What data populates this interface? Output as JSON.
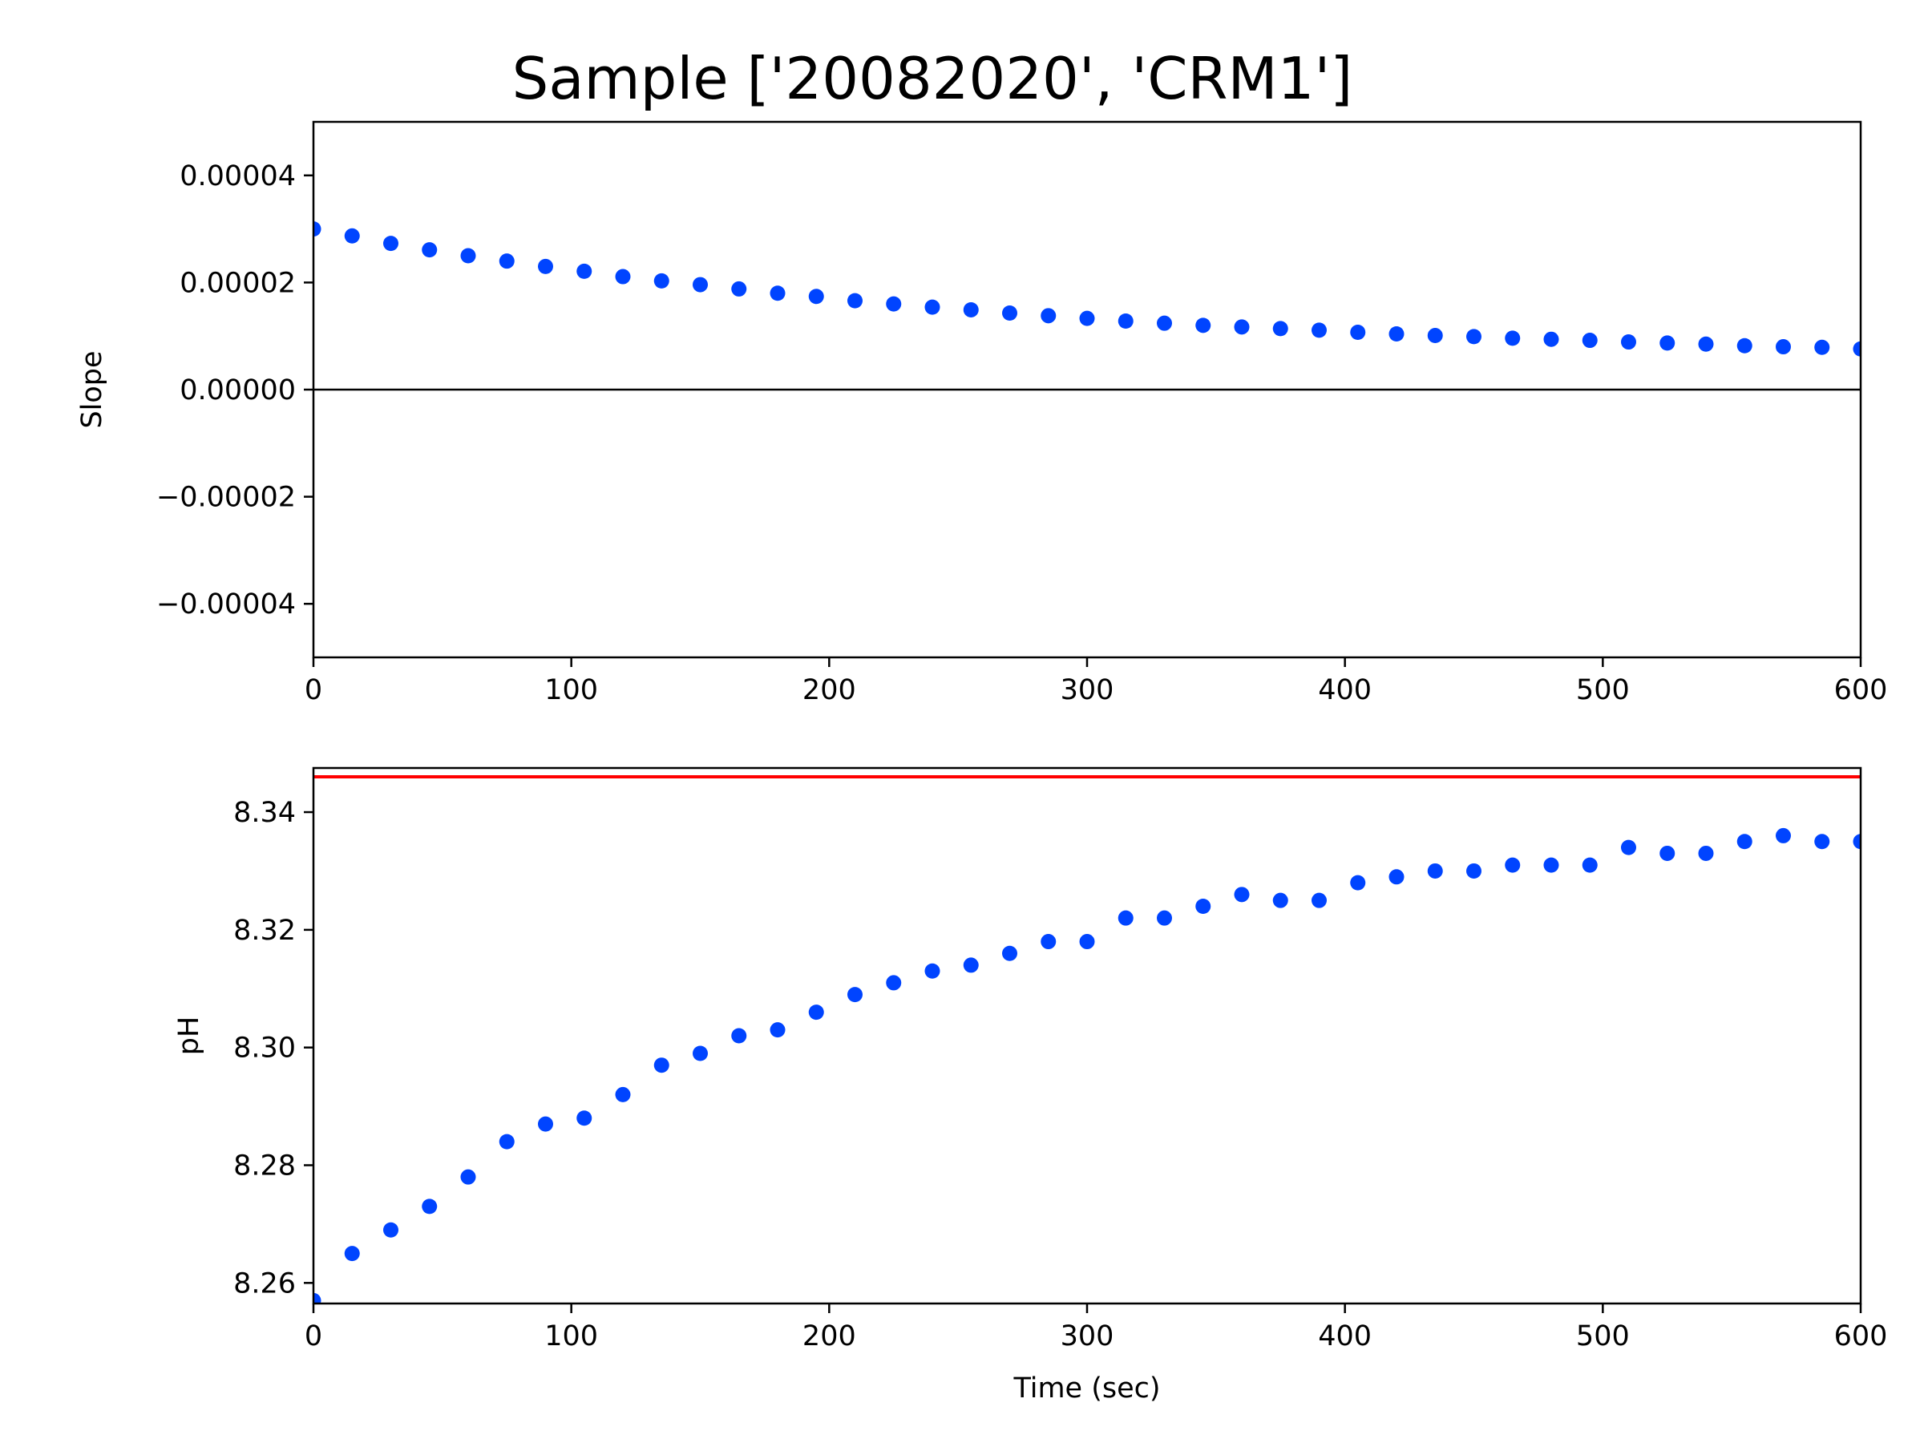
{
  "chart_data": [
    {
      "type": "scatter",
      "title": "Sample ['20082020', 'CRM1']",
      "xlabel": "",
      "ylabel": "Slope",
      "xlim": [
        0,
        600
      ],
      "ylim": [
        -5e-05,
        5e-05
      ],
      "xticks": [
        0,
        100,
        200,
        300,
        400,
        500,
        600
      ],
      "xtick_labels": [
        "0",
        "100",
        "200",
        "300",
        "400",
        "500",
        "600"
      ],
      "yticks": [
        4e-05,
        2e-05,
        0.0,
        -2e-05,
        -4e-05
      ],
      "ytick_labels": [
        "0.00004",
        "0.00002",
        "0.00000",
        "−0.00002",
        "−0.00004"
      ],
      "reference_line": {
        "orientation": "horizontal",
        "y": 0.0,
        "color": "#000000"
      },
      "series": [
        {
          "name": "Slope",
          "color": "#0044ff",
          "x": [
            0,
            15,
            30,
            45,
            60,
            75,
            90,
            105,
            120,
            135,
            150,
            165,
            180,
            195,
            210,
            225,
            240,
            255,
            270,
            285,
            300,
            315,
            330,
            345,
            360,
            375,
            390,
            405,
            420,
            435,
            450,
            465,
            480,
            495,
            510,
            525,
            540,
            555,
            570,
            585,
            600
          ],
          "y": [
            3e-05,
            2.87e-05,
            2.73e-05,
            2.61e-05,
            2.5e-05,
            2.4e-05,
            2.3e-05,
            2.21e-05,
            2.11e-05,
            2.03e-05,
            1.96e-05,
            1.88e-05,
            1.8e-05,
            1.74e-05,
            1.66e-05,
            1.6e-05,
            1.54e-05,
            1.49e-05,
            1.43e-05,
            1.38e-05,
            1.33e-05,
            1.28e-05,
            1.24e-05,
            1.2e-05,
            1.17e-05,
            1.14e-05,
            1.11e-05,
            1.07e-05,
            1.04e-05,
            1.01e-05,
            9.9e-06,
            9.6e-06,
            9.4e-06,
            9.2e-06,
            8.9e-06,
            8.7e-06,
            8.5e-06,
            8.2e-06,
            8e-06,
            7.9e-06,
            7.6e-06
          ]
        }
      ]
    },
    {
      "type": "scatter",
      "title": "",
      "xlabel": "Time (sec)",
      "ylabel": "pH",
      "xlim": [
        0,
        600
      ],
      "ylim": [
        8.2565,
        8.3475
      ],
      "xticks": [
        0,
        100,
        200,
        300,
        400,
        500,
        600
      ],
      "xtick_labels": [
        "0",
        "100",
        "200",
        "300",
        "400",
        "500",
        "600"
      ],
      "yticks": [
        8.34,
        8.32,
        8.3,
        8.28,
        8.26
      ],
      "ytick_labels": [
        "8.34",
        "8.32",
        "8.30",
        "8.28",
        "8.26"
      ],
      "reference_line": {
        "orientation": "horizontal",
        "y": 8.346,
        "color": "#ff0000"
      },
      "series": [
        {
          "name": "pH",
          "color": "#0044ff",
          "x": [
            0,
            15,
            30,
            45,
            60,
            75,
            90,
            105,
            120,
            135,
            150,
            165,
            180,
            195,
            210,
            225,
            240,
            255,
            270,
            285,
            300,
            315,
            330,
            345,
            360,
            375,
            390,
            405,
            420,
            435,
            450,
            465,
            480,
            495,
            510,
            525,
            540,
            555,
            570,
            585,
            600
          ],
          "y": [
            8.257,
            8.265,
            8.269,
            8.273,
            8.278,
            8.284,
            8.287,
            8.288,
            8.292,
            8.297,
            8.299,
            8.302,
            8.303,
            8.306,
            8.309,
            8.311,
            8.313,
            8.314,
            8.316,
            8.318,
            8.318,
            8.322,
            8.322,
            8.324,
            8.326,
            8.325,
            8.325,
            8.328,
            8.329,
            8.33,
            8.33,
            8.331,
            8.331,
            8.331,
            8.334,
            8.333,
            8.333,
            8.335,
            8.336,
            8.335,
            8.335
          ]
        }
      ]
    }
  ]
}
